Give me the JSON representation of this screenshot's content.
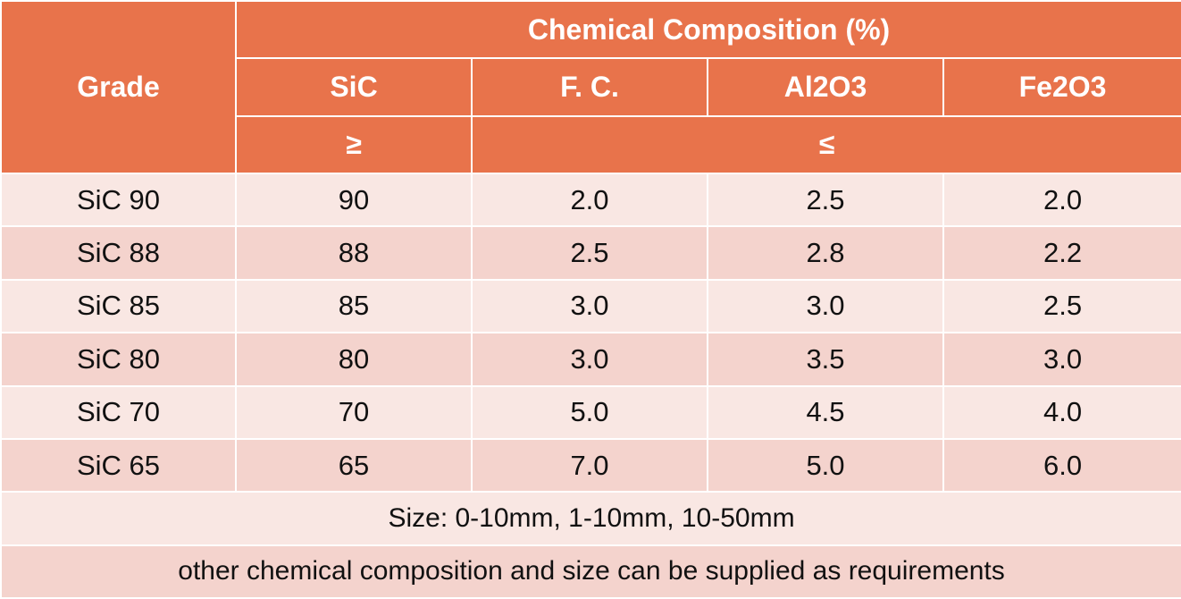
{
  "colors": {
    "header_bg": "#e8734b",
    "row_light": "#f9e7e3",
    "row_dark": "#f4d3cd",
    "border": "#ffffff"
  },
  "header": {
    "grade": "Grade",
    "group_title": "Chemical Composition (%)",
    "columns": [
      "SiC",
      "F. C.",
      "Al2O3",
      "Fe2O3"
    ],
    "ge_symbol": "≥",
    "le_symbol": "≤"
  },
  "rows": [
    {
      "grade": "SiC 90",
      "sic": "90",
      "fc": "2.0",
      "al2o3": "2.5",
      "fe2o3": "2.0"
    },
    {
      "grade": "SiC 88",
      "sic": "88",
      "fc": "2.5",
      "al2o3": "2.8",
      "fe2o3": "2.2"
    },
    {
      "grade": "SiC 85",
      "sic": "85",
      "fc": "3.0",
      "al2o3": "3.0",
      "fe2o3": "2.5"
    },
    {
      "grade": "SiC 80",
      "sic": "80",
      "fc": "3.0",
      "al2o3": "3.5",
      "fe2o3": "3.0"
    },
    {
      "grade": "SiC 70",
      "sic": "70",
      "fc": "5.0",
      "al2o3": "4.5",
      "fe2o3": "4.0"
    },
    {
      "grade": "SiC 65",
      "sic": "65",
      "fc": "7.0",
      "al2o3": "5.0",
      "fe2o3": "6.0"
    }
  ],
  "notes": {
    "size": "Size: 0-10mm, 1-10mm, 10-50mm",
    "other": "other chemical composition and size can be supplied as requirements"
  }
}
